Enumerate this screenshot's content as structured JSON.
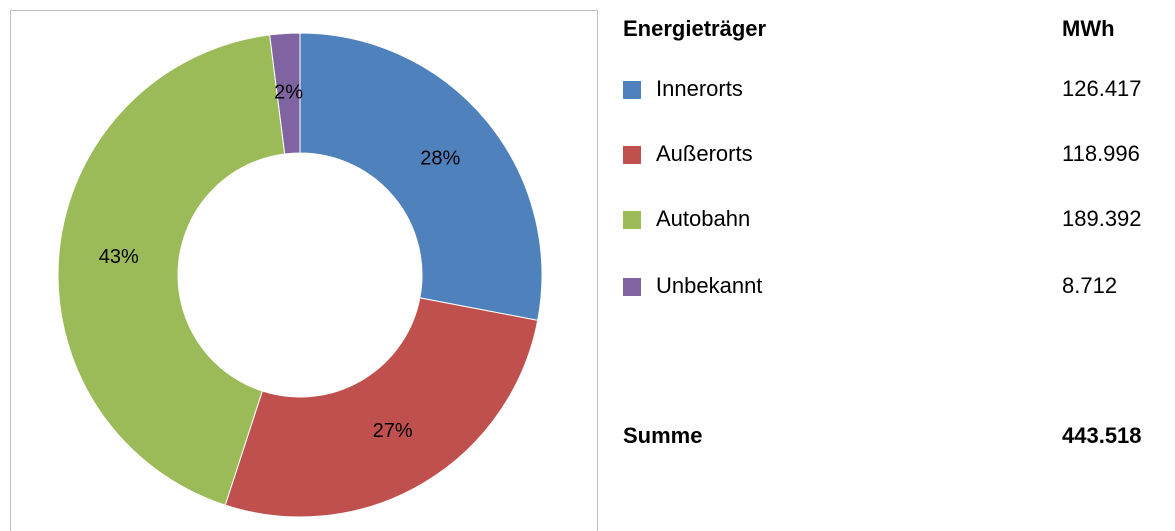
{
  "chart_data": {
    "type": "donut",
    "categories": [
      "Innerorts",
      "Außerorts",
      "Autobahn",
      "Unbekannt"
    ],
    "values": [
      28,
      27,
      43,
      2
    ],
    "value_labels": [
      "28%",
      "27%",
      "43%",
      "2%"
    ],
    "colors": [
      "#4f81bd",
      "#c0504d",
      "#9bbb59",
      "#8064a2"
    ]
  },
  "table": {
    "header": [
      "Energieträger",
      "MWh"
    ],
    "values": [
      "126.417",
      "118.996",
      "189.392",
      "8.712"
    ],
    "total": [
      "Summe",
      "443.518"
    ]
  }
}
